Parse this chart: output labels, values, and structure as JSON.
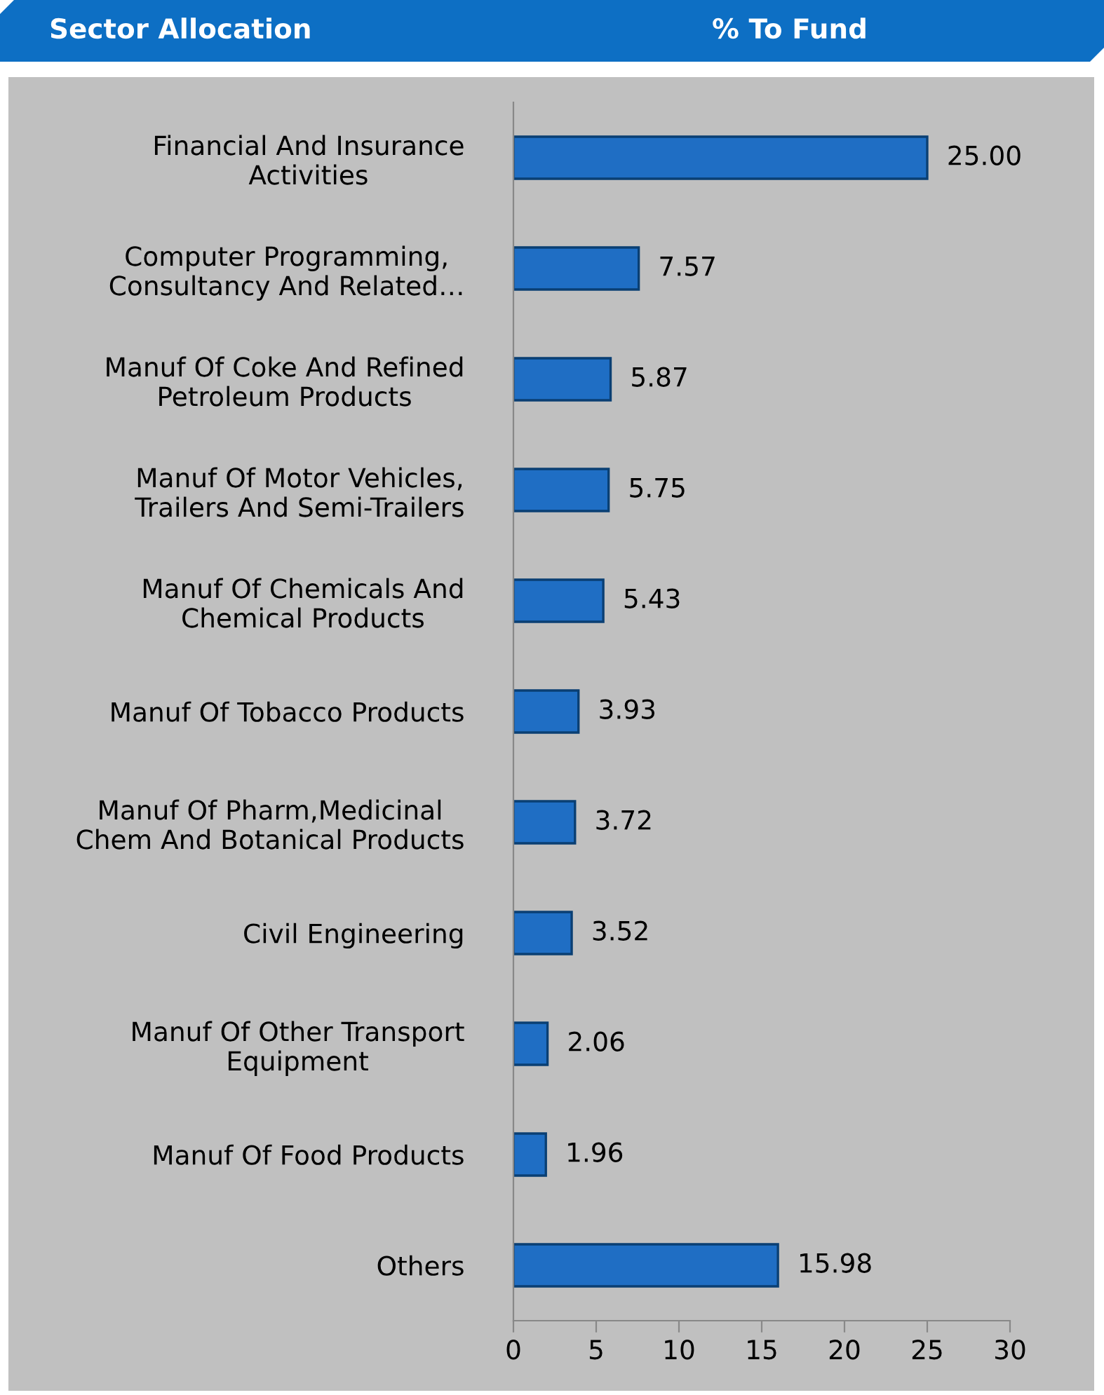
{
  "chart_data": {
    "type": "bar",
    "orientation": "horizontal",
    "title": "Sector Allocation",
    "subtitle": "% To Fund",
    "categories": [
      "Financial And Insurance\nActivities",
      "Computer Programming,\nConsultancy And Related…",
      "Manuf Of Coke And Refined\nPetroleum Products",
      "Manuf Of Motor Vehicles,\nTrailers And Semi-Trailers",
      "Manuf Of Chemicals And\nChemical Products",
      "Manuf Of Tobacco Products",
      "Manuf Of Pharm,Medicinal\nChem And Botanical Products",
      "Civil Engineering",
      "Manuf Of Other Transport\nEquipment",
      "Manuf Of Food Products",
      "Others"
    ],
    "values": [
      25.0,
      7.57,
      5.87,
      5.75,
      5.43,
      3.93,
      3.72,
      3.52,
      2.06,
      1.96,
      15.98
    ],
    "value_labels": [
      "25.00",
      "7.57",
      "5.87",
      "5.75",
      "5.43",
      "3.93",
      "3.72",
      "3.52",
      "2.06",
      "1.96",
      "15.98"
    ],
    "color": "#1f6ec4",
    "xlim": [
      0,
      30
    ],
    "xticks": [
      0,
      5,
      10,
      15,
      20,
      25,
      30
    ],
    "grid": false,
    "legend": false
  }
}
